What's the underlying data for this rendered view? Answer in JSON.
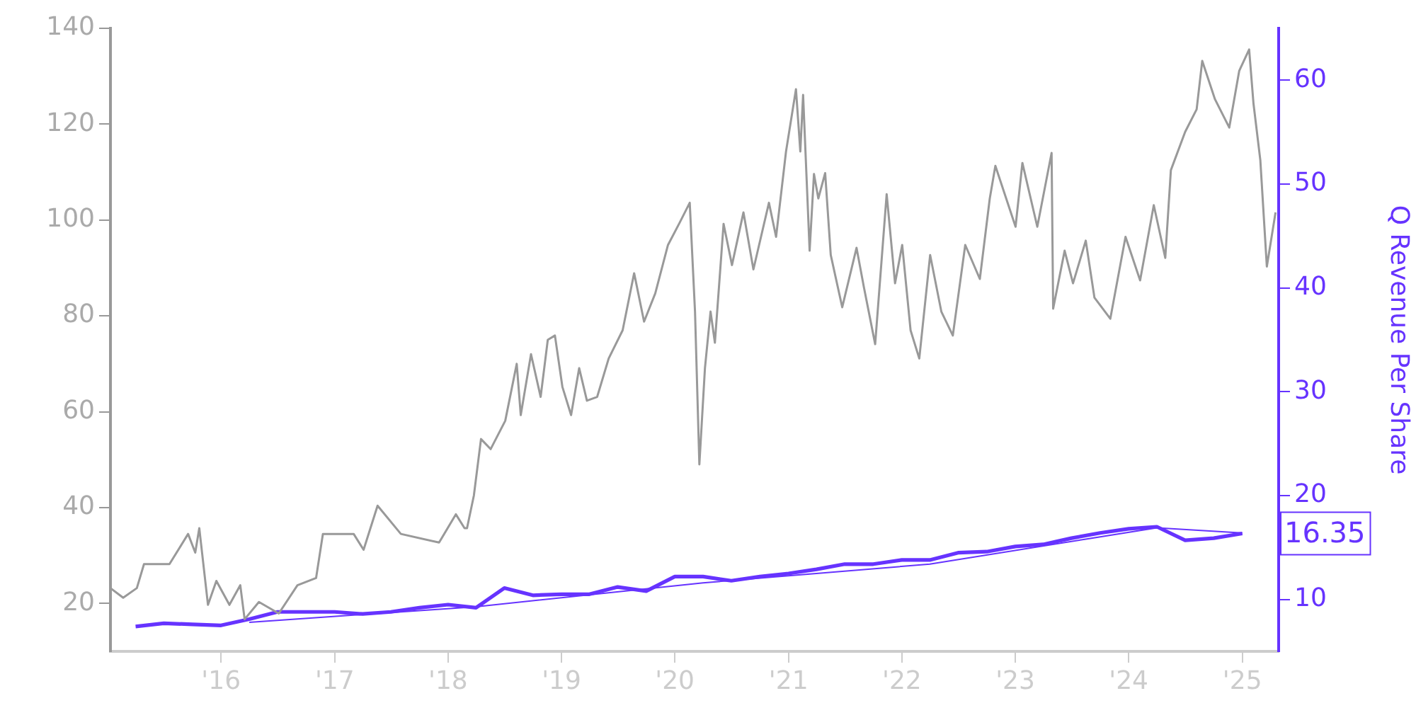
{
  "chart_data": {
    "type": "line",
    "y2label": "Q Revenue Per Share",
    "xlim": [
      "2015-01-10",
      "2025-04-28"
    ],
    "xticks": [
      {
        "value": "2016-01-01",
        "label": "'16"
      },
      {
        "value": "2017-01-01",
        "label": "'17"
      },
      {
        "value": "2018-01-01",
        "label": "'18"
      },
      {
        "value": "2019-01-01",
        "label": "'19"
      },
      {
        "value": "2020-01-01",
        "label": "'20"
      },
      {
        "value": "2021-01-01",
        "label": "'21"
      },
      {
        "value": "2022-01-01",
        "label": "'22"
      },
      {
        "value": "2023-01-01",
        "label": "'23"
      },
      {
        "value": "2024-01-01",
        "label": "'24"
      },
      {
        "value": "2025-01-01",
        "label": "'25"
      }
    ],
    "ylim": [
      10,
      140
    ],
    "yticks": [
      20,
      40,
      60,
      80,
      100,
      120,
      140
    ],
    "y2lim": [
      5,
      65
    ],
    "y2ticks": [
      10,
      20,
      30,
      40,
      50,
      60
    ],
    "grid": false,
    "legend": false,
    "marker": "none",
    "line_style": "solid",
    "series": [
      {
        "color": "#999999",
        "x": [
          "2015-01-10",
          "2015-02-20",
          "2015-04-05",
          "2015-04-28",
          "2015-07-19",
          "2015-09-17",
          "2015-10-10",
          "2015-10-23",
          "2015-11-20",
          "2015-12-17",
          "2016-01-28",
          "2016-03-03",
          "2016-03-17",
          "2016-05-02",
          "2016-07-05",
          "2016-09-03",
          "2016-11-02",
          "2016-11-24",
          "2017-03-03",
          "2017-04-04",
          "2017-05-19",
          "2017-08-02",
          "2017-12-03",
          "2018-01-26",
          "2018-02-23",
          "2018-03-03",
          "2018-03-25",
          "2018-04-17",
          "2018-05-18",
          "2018-07-04",
          "2018-08-10",
          "2018-08-23",
          "2018-09-25",
          "2018-10-26",
          "2018-11-18",
          "2018-12-11",
          "2019-01-04",
          "2019-02-01",
          "2019-02-27",
          "2019-03-24",
          "2019-04-26",
          "2019-06-02",
          "2019-07-17",
          "2019-08-23",
          "2019-09-24",
          "2019-10-30",
          "2019-12-10",
          "2020-01-17",
          "2020-02-18",
          "2020-03-06",
          "2020-03-20",
          "2020-04-07",
          "2020-04-25",
          "2020-05-09",
          "2020-06-06",
          "2020-07-03",
          "2020-08-09",
          "2020-09-10",
          "2020-10-30",
          "2020-11-22",
          "2020-12-24",
          "2021-01-25",
          "2021-02-08",
          "2021-02-17",
          "2021-03-10",
          "2021-03-24",
          "2021-04-07",
          "2021-04-29",
          "2021-05-17",
          "2021-06-23",
          "2021-08-08",
          "2021-09-01",
          "2021-10-07",
          "2021-11-13",
          "2021-12-10",
          "2022-01-02",
          "2022-01-29",
          "2022-02-26",
          "2022-04-02",
          "2022-05-08",
          "2022-06-14",
          "2022-07-24",
          "2022-09-09",
          "2022-10-11",
          "2022-10-29",
          "2023-01-02",
          "2023-01-24",
          "2023-03-13",
          "2023-04-28",
          "2023-05-03",
          "2023-06-09",
          "2023-07-06",
          "2023-08-16",
          "2023-09-13",
          "2023-11-03",
          "2023-12-22",
          "2024-02-07",
          "2024-03-22",
          "2024-04-28",
          "2024-05-16",
          "2024-07-01",
          "2024-08-07",
          "2024-08-25",
          "2024-10-05",
          "2024-11-20",
          "2024-12-22",
          "2025-01-23",
          "2025-02-06",
          "2025-02-28",
          "2025-03-21",
          "2025-04-18"
        ],
        "values": [
          23.2,
          21.2,
          23.2,
          28.2,
          28.2,
          34.5,
          30.6,
          35.7,
          19.7,
          24.7,
          19.7,
          23.8,
          16.7,
          20.3,
          17.9,
          23.8,
          25.3,
          34.5,
          34.5,
          31.2,
          40.4,
          34.5,
          32.7,
          38.6,
          35.7,
          35.7,
          42.5,
          54.3,
          52.2,
          58.1,
          70,
          59.3,
          72,
          63.1,
          75,
          75.9,
          65.2,
          59.3,
          69.1,
          62.3,
          63.1,
          71.1,
          77,
          88.9,
          78.8,
          84.7,
          94.8,
          99.5,
          103.6,
          80.9,
          49,
          69.1,
          80.9,
          74.4,
          99.2,
          90.6,
          101.6,
          89.7,
          103.6,
          96.5,
          114.3,
          127.3,
          114.3,
          126.1,
          93.6,
          109.6,
          104.5,
          109.8,
          92.7,
          81.8,
          94.2,
          85.9,
          74.1,
          105.4,
          86.8,
          94.8,
          77,
          71.1,
          92.7,
          80.9,
          75.9,
          94.8,
          87.7,
          104.5,
          111.3,
          98.6,
          111.9,
          98.6,
          114,
          81.5,
          93.6,
          86.8,
          95.7,
          83.8,
          79.4,
          96.5,
          87.4,
          103.1,
          92.1,
          110.4,
          118.4,
          123.1,
          133.2,
          125.2,
          119.3,
          131.1,
          135.6,
          124.3,
          112.5,
          90.3,
          101.6
        ]
      },
      {
        "color": "#6633ff",
        "axis": "y2",
        "x": [
          "2015-04-01",
          "2015-07-01",
          "2015-10-01",
          "2016-01-01",
          "2016-04-01",
          "2016-07-01",
          "2016-10-01",
          "2017-01-01",
          "2017-04-01",
          "2017-07-01",
          "2017-10-01",
          "2018-01-01",
          "2018-04-01",
          "2018-07-01",
          "2018-10-01",
          "2019-01-01",
          "2019-04-01",
          "2019-07-01",
          "2019-10-01",
          "2020-01-01",
          "2020-04-01",
          "2020-07-01",
          "2020-10-01",
          "2021-01-01",
          "2021-04-01",
          "2021-07-01",
          "2021-10-01",
          "2022-01-01",
          "2022-04-01",
          "2022-07-01",
          "2022-10-01",
          "2023-01-01",
          "2023-04-01",
          "2023-07-01",
          "2023-10-01",
          "2024-01-01",
          "2024-04-01",
          "2024-07-01",
          "2024-10-01",
          "2025-01-01"
        ],
        "values": [
          7.4,
          7.7,
          7.6,
          7.5,
          8.1,
          8.8,
          8.8,
          8.8,
          8.6,
          8.8,
          9.2,
          9.5,
          9.2,
          11.1,
          10.4,
          10.5,
          10.5,
          11.2,
          10.8,
          12.2,
          12.2,
          11.8,
          12.2,
          12.5,
          12.9,
          13.4,
          13.4,
          13.8,
          13.8,
          14.5,
          14.6,
          15.1,
          15.3,
          15.9,
          16.4,
          16.8,
          17,
          15.7,
          15.9,
          16.35
        ],
        "value_labels": [
          null,
          null,
          null,
          null,
          null,
          null,
          null,
          null,
          null,
          null,
          null,
          null,
          null,
          null,
          null,
          null,
          null,
          null,
          null,
          null,
          null,
          null,
          null,
          null,
          null,
          null,
          null,
          null,
          null,
          null,
          null,
          null,
          null,
          null,
          null,
          null,
          null,
          null,
          null,
          "16.35"
        ]
      },
      {
        "color": "#6633ff",
        "axis": "y2",
        "x": [
          "2016-04-01",
          "2018-04-01",
          "2020-04-01",
          "2022-04-01",
          "2024-04-01",
          "2025-01-01"
        ],
        "values": [
          7.8,
          9.3,
          11.6,
          13.4,
          16.9,
          16.4
        ]
      }
    ]
  }
}
